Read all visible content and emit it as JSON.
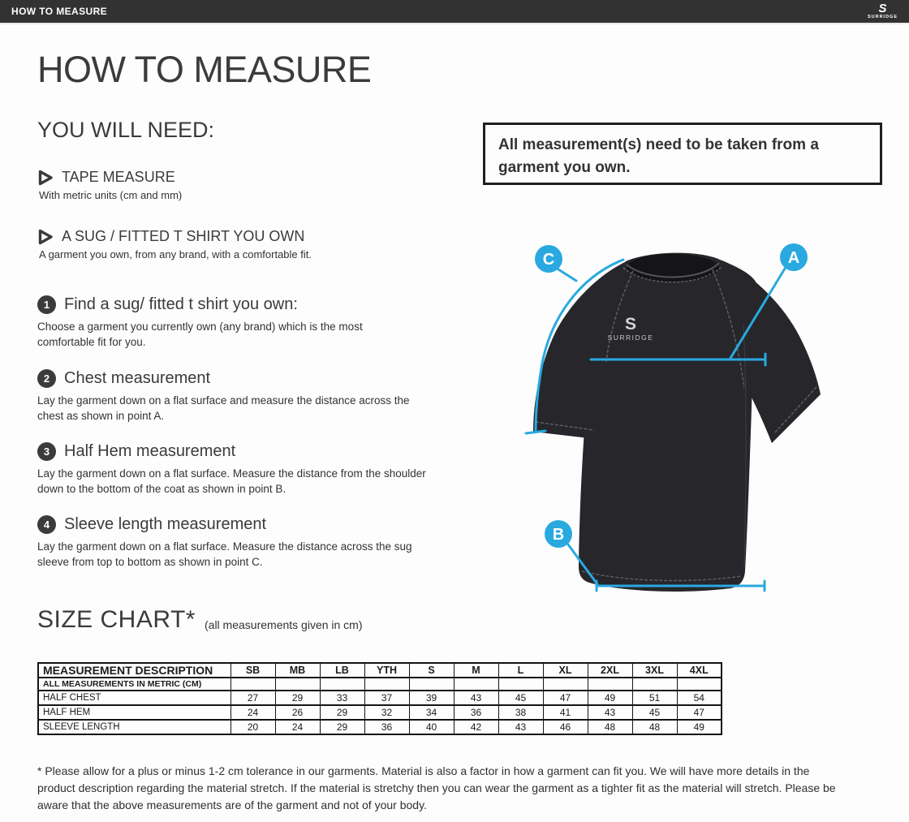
{
  "header": {
    "title": "HOW TO MEASURE",
    "brand": {
      "mark": "S",
      "name": "SURRIDGE"
    }
  },
  "page": {
    "title": "HOW TO MEASURE",
    "you_will_need": {
      "heading": "YOU WILL NEED:",
      "items": [
        {
          "title": "TAPE MEASURE",
          "description": "With metric units (cm and mm)"
        },
        {
          "title": "A SUG / FITTED T SHIRT YOU OWN",
          "description": "A garment you own, from any brand, with a comfortable fit."
        }
      ]
    },
    "steps": [
      {
        "number": "1",
        "title": "Find a sug/ fitted t shirt you own:",
        "description": "Choose a garment you currently own (any brand) which is the most comfortable fit for you."
      },
      {
        "number": "2",
        "title": "Chest measurement",
        "description": "Lay the garment down on a flat surface and measure the distance across the chest as shown in point A."
      },
      {
        "number": "3",
        "title": "Half Hem measurement",
        "description": "Lay the garment down on a flat surface. Measure the distance from the shoulder down to the bottom of the coat as shown in point B."
      },
      {
        "number": "4",
        "title": "Sleeve length measurement",
        "description": "Lay the garment down on a flat surface. Measure the distance across the sug sleeve from top to bottom as shown in point C."
      }
    ],
    "callout": "All measurement(s) need to be taken from a garment you own.",
    "diagram": {
      "markers": {
        "a": "A",
        "b": "B",
        "c": "C"
      },
      "shirt_logo_mark": "S",
      "shirt_logo": "SURRIDGE",
      "accent_color": "#29A9E0",
      "shirt_color": "#26262b"
    },
    "size_chart": {
      "heading": "SIZE CHART*",
      "subtitle": "(all measurements given in cm)",
      "table": {
        "description_header": "MEASUREMENT DESCRIPTION",
        "size_headers": [
          "SB",
          "MB",
          "LB",
          "YTH",
          "S",
          "M",
          "L",
          "XL",
          "2XL",
          "3XL",
          "4XL"
        ],
        "metric_note": "ALL MEASUREMENTS IN METRIC (CM)",
        "rows": [
          {
            "label": "HALF CHEST",
            "values": [
              27,
              29,
              33,
              37,
              39,
              43,
              45,
              47,
              49,
              51,
              54
            ]
          },
          {
            "label": "HALF HEM",
            "values": [
              24,
              26,
              29,
              32,
              34,
              36,
              38,
              41,
              43,
              45,
              47
            ]
          },
          {
            "label": "SLEEVE LENGTH",
            "values": [
              20,
              24,
              29,
              36,
              40,
              42,
              43,
              46,
              48,
              48,
              49
            ]
          }
        ]
      }
    },
    "footnote": "* Please allow for a plus or minus 1-2 cm tolerance in our garments. Material is also a factor in how a garment can fit you. We will have more details in the product description regarding the material stretch.  If the material is stretchy then you can wear the garment as a tighter fit as the material will stretch.  Please be aware that the above measurements are of the garment and not of your body."
  }
}
